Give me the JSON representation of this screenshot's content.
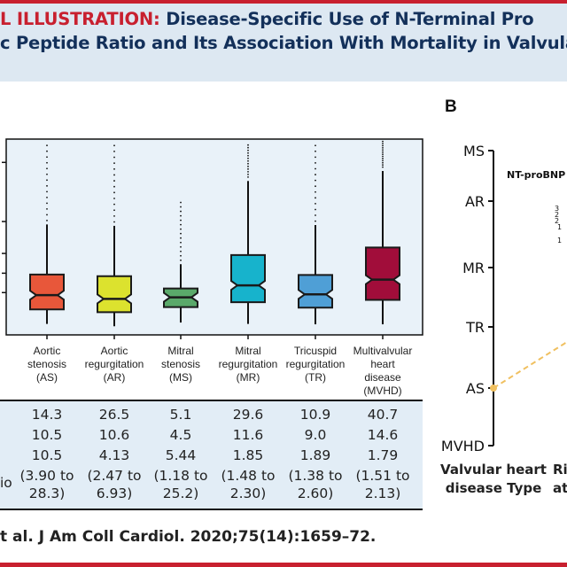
{
  "header": {
    "title_prefix": "L ILLUSTRATION:",
    "title_line1": " Disease-Specific Use of N-Terminal Pro",
    "title_line2": "c Peptide Ratio and Its Association With Mortality in Valvula"
  },
  "panel_b_label": "B",
  "chart_data": [
    {
      "type": "box",
      "title": "",
      "ylabel": "",
      "yscale": "unlabeled (tick labels cropped); values are fractions of plotted axis range, 0=bottom, 1=top",
      "ylim": [
        0,
        1
      ],
      "yticks": [
        0.216,
        0.315,
        0.416,
        0.579,
        0.881
      ],
      "notched": true,
      "categories": [
        {
          "label": [
            "Aortic",
            "stenosis",
            "(AS)"
          ],
          "color": "#e8573a",
          "whisker_low": 0.056,
          "q1": 0.13,
          "median": 0.203,
          "q3": 0.308,
          "whisker_high": 0.564,
          "outlier_max": 0.977
        },
        {
          "label": [
            "Aortic",
            "regurgitation",
            "(AR)"
          ],
          "color": "#dce22e",
          "whisker_low": 0.044,
          "q1": 0.116,
          "median": 0.184,
          "q3": 0.3,
          "whisker_high": 0.557,
          "outlier_max": 0.977
        },
        {
          "label": [
            "Mitral",
            "stenosis",
            "(MS)"
          ],
          "color": "#5aa96a",
          "whisker_low": 0.063,
          "q1": 0.142,
          "median": 0.192,
          "q3": 0.237,
          "whisker_high": 0.361,
          "outlier_max": 0.679
        },
        {
          "label": [
            "Mitral",
            "regurgitation",
            "(MR)"
          ],
          "color": "#17b3cc",
          "whisker_low": 0.056,
          "q1": 0.167,
          "median": 0.253,
          "q3": 0.408,
          "whisker_high": 0.786,
          "outlier_max": 0.977
        },
        {
          "label": [
            "Tricuspid",
            "regurgitation",
            "(TR)"
          ],
          "color": "#4f9fd6",
          "whisker_low": 0.054,
          "q1": 0.139,
          "median": 0.207,
          "q3": 0.306,
          "whisker_high": 0.561,
          "outlier_max": 0.977
        },
        {
          "label": [
            "Multivalvular",
            "heart",
            "disease",
            "(MVHD)"
          ],
          "color": "#a10d3a",
          "whisker_low": 0.054,
          "q1": 0.179,
          "median": 0.282,
          "q3": 0.446,
          "whisker_high": 0.837,
          "outlier_max": 0.99
        }
      ]
    },
    {
      "type": "nomogram",
      "axis_ticks": [
        "MS",
        "AR",
        "MR",
        "TR",
        "AS",
        "MVHD"
      ],
      "axis_title": [
        "Valvular heart",
        "disease Type"
      ],
      "selected": "AS",
      "selected_color": "#f0c060",
      "second_axis_title": "NT-proBNP",
      "second_axis_partial_ticks": [
        "3",
        "2",
        "2",
        "1",
        "1"
      ],
      "third_axis_title_partial": [
        "Ris",
        "at"
      ]
    }
  ],
  "table": {
    "row_label_partial": "io",
    "rows": [
      [
        "14.3",
        "26.5",
        "5.1",
        "29.6",
        "10.9",
        "40.7"
      ],
      [
        "10.5",
        "10.6",
        "4.5",
        "11.6",
        "9.0",
        "14.6"
      ],
      [
        "10.5",
        "4.13",
        "5.44",
        "1.85",
        "1.89",
        "1.79"
      ]
    ],
    "ci_rows": [
      [
        "(3.90 to",
        "(2.47 to",
        "(1.18 to",
        "(1.48 to",
        "(1.38 to",
        "(1.51 to"
      ],
      [
        "28.3)",
        "6.93)",
        "25.2)",
        "2.30)",
        "2.60)",
        "2.13)"
      ]
    ]
  },
  "citation": "t al. J Am Coll Cardiol. 2020;75(14):1659–72."
}
